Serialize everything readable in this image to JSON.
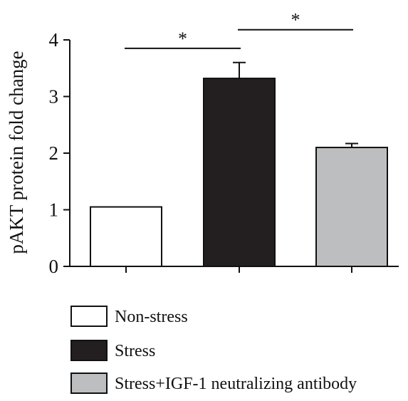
{
  "chart_data": {
    "type": "bar",
    "ylabel": "pAKT protein fold change",
    "ylim": [
      0,
      4
    ],
    "yticks": [
      0,
      1,
      2,
      3,
      4
    ],
    "grid": false,
    "legend_position": "bottom",
    "series": [
      {
        "name": "Non-stress",
        "value": 1.05,
        "error": 0.0,
        "fill": "#ffffff"
      },
      {
        "name": "Stress",
        "value": 3.32,
        "error": 0.28,
        "fill": "#231f20"
      },
      {
        "name": "Stress+IGF-1 neutralizing antibody",
        "value": 2.1,
        "error": 0.07,
        "fill": "#bcbec0"
      }
    ],
    "significance": [
      {
        "from": 0,
        "to": 1,
        "label": "*",
        "y": 3.85
      },
      {
        "from": 1,
        "to": 2,
        "label": "*",
        "y": 4.18
      }
    ]
  }
}
